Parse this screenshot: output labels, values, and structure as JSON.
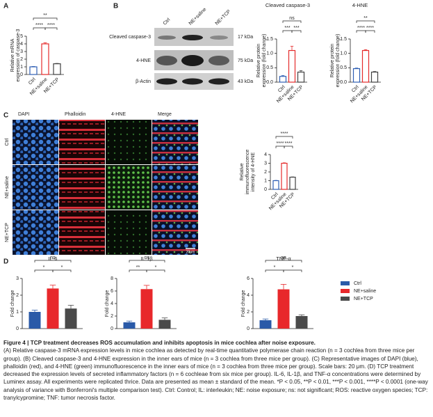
{
  "panels": [
    "A",
    "B",
    "C",
    "D"
  ],
  "blot": {
    "lanes": [
      "Ctrl",
      "NE+saline",
      "NE+TCP"
    ],
    "rows": [
      {
        "label": "Cleaved caspase-3",
        "size": "17 kDa"
      },
      {
        "label": "4-HNE",
        "size": "75 kDa"
      },
      {
        "label": "β-Actin",
        "size": "43 kDa"
      }
    ]
  },
  "micro": {
    "channels": [
      "DAPI",
      "Phalloidin",
      "4-HNE",
      "Merge"
    ],
    "conditions": [
      "Ctrl",
      "NE+saline",
      "NE+TCP"
    ],
    "scale_bar": "20μm"
  },
  "legend": {
    "entries": [
      {
        "name": "Ctrl",
        "color": "#2a5aa8"
      },
      {
        "name": "NE+saline",
        "color": "#e8282b"
      },
      {
        "name": "NE+TCP",
        "color": "#4a4a4a"
      }
    ]
  },
  "chart_data": [
    {
      "type": "bar",
      "bar_style": "outline",
      "y_label": [
        "Relative mRNA",
        "expression of caspase-3"
      ],
      "categories": [
        "Ctrl",
        "NE+saline",
        "NE+TCP"
      ],
      "values": [
        1.0,
        4.0,
        1.4
      ],
      "errors": [
        0.05,
        0.15,
        0.05
      ],
      "colors": [
        "#2f5fb3",
        "#e52b2b",
        "#404040"
      ],
      "ylim": [
        0,
        5
      ],
      "yticks": [
        0,
        1,
        2,
        3,
        4,
        5
      ],
      "comparisons": [
        {
          "text": "**",
          "between": [
            0,
            2
          ]
        },
        {
          "text": "****",
          "between": [
            0,
            1
          ]
        },
        {
          "text": "****",
          "between": [
            1,
            2
          ]
        }
      ]
    },
    {
      "type": "bar",
      "bar_style": "outline",
      "title": "Cleaved caspase-3",
      "y_label": [
        "Relative protein",
        "expression (fold change)"
      ],
      "categories": [
        "Ctrl",
        "NE+saline",
        "NE+TCP"
      ],
      "values": [
        0.2,
        1.1,
        0.35
      ],
      "errors": [
        0.03,
        0.15,
        0.05
      ],
      "colors": [
        "#2f5fb3",
        "#e52b2b",
        "#404040"
      ],
      "ylim": [
        0,
        1.5
      ],
      "yticks": [
        {
          "value": 0,
          "label": "0.0"
        },
        0.5,
        {
          "value": 1,
          "label": "1.0"
        },
        1.5
      ],
      "comparisons": [
        {
          "text": "ns",
          "between": [
            0,
            2
          ]
        },
        {
          "text": "***",
          "between": [
            0,
            1
          ]
        },
        {
          "text": "***",
          "between": [
            1,
            2
          ]
        }
      ]
    },
    {
      "type": "bar",
      "bar_style": "outline",
      "title": "4-HNE",
      "y_label": [
        "Relative protein",
        "expression (fold change)"
      ],
      "categories": [
        "Ctrl",
        "NE+saline",
        "NE+TCP"
      ],
      "values": [
        0.47,
        1.1,
        0.35
      ],
      "errors": [
        0.02,
        0.03,
        0.02
      ],
      "colors": [
        "#2f5fb3",
        "#e52b2b",
        "#404040"
      ],
      "ylim": [
        0,
        1.5
      ],
      "yticks": [
        {
          "value": 0,
          "label": "0.0"
        },
        0.5,
        {
          "value": 1,
          "label": "1.0"
        },
        1.5
      ],
      "comparisons": [
        {
          "text": "**",
          "between": [
            0,
            2
          ]
        },
        {
          "text": "****",
          "between": [
            0,
            1
          ]
        },
        {
          "text": "****",
          "between": [
            1,
            2
          ]
        }
      ]
    },
    {
      "type": "bar",
      "bar_style": "outline",
      "y_label": [
        "Relative",
        "immunofluorescence",
        "intensity of 4-HNE"
      ],
      "categories": [
        "Ctrl",
        "NE+saline",
        "NE+TCP"
      ],
      "values": [
        1.0,
        3.0,
        1.4
      ],
      "errors": [
        0.03,
        0.05,
        0.03
      ],
      "colors": [
        "#2f5fb3",
        "#e52b2b",
        "#404040"
      ],
      "ylim": [
        0,
        4
      ],
      "yticks": [
        0,
        1,
        2,
        3,
        4
      ],
      "comparisons": [
        {
          "text": "****",
          "between": [
            0,
            2
          ]
        },
        {
          "text": "****",
          "between": [
            0,
            1
          ]
        },
        {
          "text": "****",
          "between": [
            1,
            2
          ]
        }
      ]
    },
    {
      "type": "bar",
      "bar_style": "filled",
      "title": "IL-6",
      "y_label": [
        "Fold change"
      ],
      "values": [
        1.0,
        2.4,
        1.2
      ],
      "errors": [
        0.1,
        0.2,
        0.2
      ],
      "colors": [
        "#2a5aa8",
        "#e8282b",
        "#4a4a4a"
      ],
      "ylim": [
        0,
        3
      ],
      "yticks": [
        0,
        1,
        2,
        3
      ],
      "comparisons": [
        {
          "text": "ns",
          "between": [
            0,
            2
          ]
        },
        {
          "text": "*",
          "between": [
            0,
            1
          ]
        },
        {
          "text": "*",
          "between": [
            1,
            2
          ]
        }
      ]
    },
    {
      "type": "bar",
      "bar_style": "filled",
      "title": "IL-1β",
      "y_label": [
        "Fold change"
      ],
      "values": [
        1.0,
        6.3,
        1.4
      ],
      "errors": [
        0.2,
        0.6,
        0.3
      ],
      "colors": [
        "#2a5aa8",
        "#e8282b",
        "#4a4a4a"
      ],
      "ylim": [
        0,
        8
      ],
      "yticks": [
        0,
        2,
        4,
        6,
        8
      ],
      "comparisons": [
        {
          "text": "ns",
          "between": [
            0,
            2
          ]
        },
        {
          "text": "**",
          "between": [
            0,
            1
          ]
        },
        {
          "text": "*",
          "between": [
            1,
            2
          ]
        }
      ]
    },
    {
      "type": "bar",
      "bar_style": "filled",
      "title": "TNF-α",
      "y_label": [
        "Fold change"
      ],
      "values": [
        1.0,
        4.7,
        1.5
      ],
      "errors": [
        0.15,
        0.6,
        0.15
      ],
      "colors": [
        "#2a5aa8",
        "#e8282b",
        "#4a4a4a"
      ],
      "ylim": [
        0,
        6
      ],
      "yticks": [
        0,
        2,
        4,
        6
      ],
      "comparisons": [
        {
          "text": "ns",
          "between": [
            0,
            2
          ]
        },
        {
          "text": "*",
          "between": [
            0,
            1
          ]
        },
        {
          "text": "*",
          "between": [
            1,
            2
          ]
        }
      ]
    }
  ],
  "caption": {
    "label": "Figure 4",
    "title": "TCP treatment decreases ROS accumulation and inhibits apoptosis in mice cochlea after noise exposure.",
    "body": "(A) Relative caspase-3 mRNA expression levels in mice cochlea as detected by real-time quantitative polymerase chain reaction (n = 3 cochlea from three mice per group). (B) Cleaved caspase-3 and 4-HNE expression in the inner ears of mice (n = 3 cochlea from three mice per group). (C) Representative images of DAPI (blue), phalloidin (red), and 4-HNE (green) immunofluorescence in the inner ears of mice (n = 3 cochlea from three mice per group). Scale bars: 20 μm. (D) TCP treatment decreased the expression levels of secreted inflammatory factors (n = 6 cochleae from six mice per group). IL-6, IL-1β, and TNF-α concentrations were determined by Luminex assay. All experiments were replicated thrice. Data are presented as mean ± standard of the mean. *P < 0.05, **P < 0.01, ***P < 0.001, ****P < 0.0001 (one-way analysis of variance with Bonferroni's multiple comparison test). Ctrl: Control; IL: interleukin; NE: noise exposure; ns: not significant; ROS: reactive oxygen species; TCP: tranylcypromine; TNF: tumor necrosis factor."
  }
}
